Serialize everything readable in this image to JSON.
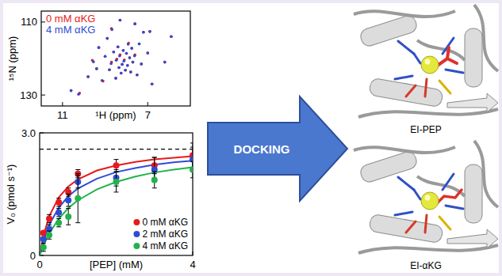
{
  "chart_data": [
    {
      "type": "scatter",
      "x_label": "¹H (ppm)",
      "y_label": "¹⁵N (ppm)",
      "xlim": [
        12,
        5
      ],
      "ylim": [
        133,
        107
      ],
      "xticks": [
        11,
        7
      ],
      "yticks": [
        110,
        130
      ],
      "legend": "top-left",
      "series": [
        {
          "name": "0 mM αKG",
          "color": "#e8191b",
          "marker": "dot",
          "x": [
            10.2,
            10.6,
            9.8,
            9.6,
            9.4,
            9.3,
            9.1,
            9.0,
            8.9,
            8.8,
            8.7,
            8.6,
            8.5,
            8.45,
            8.4,
            8.35,
            8.3,
            8.25,
            8.2,
            8.15,
            8.1,
            8.05,
            8.0,
            7.95,
            7.9,
            7.85,
            7.8,
            7.75,
            7.7,
            7.6,
            7.5,
            7.4,
            7.3,
            7.2,
            7.0,
            6.9,
            6.8,
            7.6,
            8.3,
            8.7,
            6.2,
            5.9
          ],
          "values": [
            129.5,
            128.8,
            125.0,
            120.5,
            122.8,
            117.0,
            126.2,
            119.4,
            114.5,
            123.1,
            121.0,
            118.2,
            125.4,
            120.2,
            116.8,
            122.5,
            119.0,
            124.0,
            121.6,
            117.8,
            120.4,
            123.2,
            118.6,
            121.9,
            115.8,
            119.8,
            123.7,
            117.2,
            121.0,
            119.0,
            124.5,
            116.0,
            121.5,
            112.8,
            118.5,
            112.6,
            127.0,
            110.5,
            109.5,
            111.8,
            121.0,
            114.0
          ]
        },
        {
          "name": "4 mM αKG",
          "color": "#2e4bd6",
          "marker": "dot",
          "x": [
            10.25,
            10.6,
            9.8,
            9.55,
            9.4,
            9.3,
            9.15,
            9.0,
            8.9,
            8.8,
            8.72,
            8.6,
            8.5,
            8.48,
            8.4,
            8.35,
            8.32,
            8.25,
            8.2,
            8.15,
            8.12,
            8.05,
            8.0,
            7.95,
            7.92,
            7.85,
            7.8,
            7.75,
            7.7,
            7.62,
            7.5,
            7.4,
            7.3,
            7.2,
            7.0,
            6.9,
            6.8,
            7.6,
            8.3,
            8.68,
            6.2,
            5.9
          ],
          "values": [
            129.8,
            128.8,
            125.0,
            120.9,
            122.8,
            117.0,
            126.0,
            119.4,
            114.5,
            123.1,
            121.4,
            118.2,
            125.4,
            120.5,
            116.8,
            122.5,
            119.3,
            124.0,
            121.6,
            117.8,
            120.7,
            123.2,
            118.6,
            121.9,
            116.1,
            119.8,
            123.7,
            117.2,
            121.0,
            119.3,
            124.5,
            116.0,
            121.5,
            112.8,
            118.5,
            112.6,
            127.0,
            110.5,
            109.5,
            112.1,
            121.0,
            114.0
          ]
        }
      ]
    },
    {
      "type": "scatter",
      "x_label": "[PEP] (mM)",
      "y_label": "V₀ (pmol s⁻¹)",
      "xlim": [
        0,
        4
      ],
      "ylim": [
        0,
        3
      ],
      "xticks": [
        0,
        4
      ],
      "yticks": [
        0,
        {
          "value": 3,
          "label": "3.0"
        }
      ],
      "legend": "bottom-right",
      "reference_line": 2.6,
      "series": [
        {
          "name": "0 mM αKG",
          "color": "#e8191b",
          "marker": "circle",
          "x": [
            0.1,
            0.25,
            0.5,
            0.75,
            1,
            2,
            3,
            4
          ],
          "values": [
            0.55,
            0.9,
            1.3,
            1.55,
            2.0,
            2.2,
            2.2,
            2.45
          ],
          "error": [
            0.05,
            0.1,
            0.1,
            0.1,
            0.1,
            0.15,
            0.2,
            0.3
          ]
        },
        {
          "name": "2 mM αKG",
          "color": "#2e4bd6",
          "marker": "circle",
          "x": [
            0.1,
            0.25,
            0.5,
            0.75,
            1,
            2,
            3,
            4
          ],
          "values": [
            0.4,
            0.65,
            1.05,
            1.35,
            1.8,
            1.9,
            2.1,
            2.35
          ],
          "error": [
            0.05,
            0.1,
            0.1,
            0.15,
            0.15,
            0.2,
            0.3,
            0.3
          ]
        },
        {
          "name": "4 mM αKG",
          "color": "#22b24c",
          "marker": "circle",
          "x": [
            0.1,
            0.25,
            0.5,
            0.75,
            1,
            2,
            3,
            4
          ],
          "values": [
            0.2,
            0.5,
            0.8,
            0.95,
            1.4,
            1.8,
            1.85,
            2.1
          ],
          "error": [
            0.1,
            0.1,
            0.1,
            0.2,
            0.6,
            0.25,
            0.2,
            0.2
          ]
        },
        {
          "type": "line",
          "color": "#e8191b",
          "x": [
            0,
            0.1,
            0.25,
            0.5,
            0.75,
            1,
            1.5,
            2,
            2.5,
            3,
            3.5,
            4
          ],
          "values": [
            0,
            0.49,
            0.96,
            1.42,
            1.69,
            1.86,
            2.08,
            2.2,
            2.29,
            2.35,
            2.39,
            2.43
          ]
        },
        {
          "type": "line",
          "color": "#2e4bd6",
          "x": [
            0,
            0.1,
            0.25,
            0.5,
            0.75,
            1,
            1.5,
            2,
            2.5,
            3,
            3.5,
            4
          ],
          "values": [
            0,
            0.36,
            0.75,
            1.17,
            1.45,
            1.64,
            1.88,
            2.04,
            2.14,
            2.22,
            2.28,
            2.32
          ]
        },
        {
          "type": "line",
          "color": "#22b24c",
          "x": [
            0,
            0.1,
            0.25,
            0.5,
            0.75,
            1,
            1.5,
            2,
            2.5,
            3,
            3.5,
            4
          ],
          "values": [
            0,
            0.25,
            0.54,
            0.9,
            1.16,
            1.35,
            1.62,
            1.8,
            1.93,
            2.03,
            2.1,
            2.16
          ]
        }
      ]
    }
  ],
  "arrow": {
    "label": "DOCKING"
  },
  "structures": [
    {
      "label": "EI-PEP"
    },
    {
      "label": "EI-αKG"
    }
  ]
}
